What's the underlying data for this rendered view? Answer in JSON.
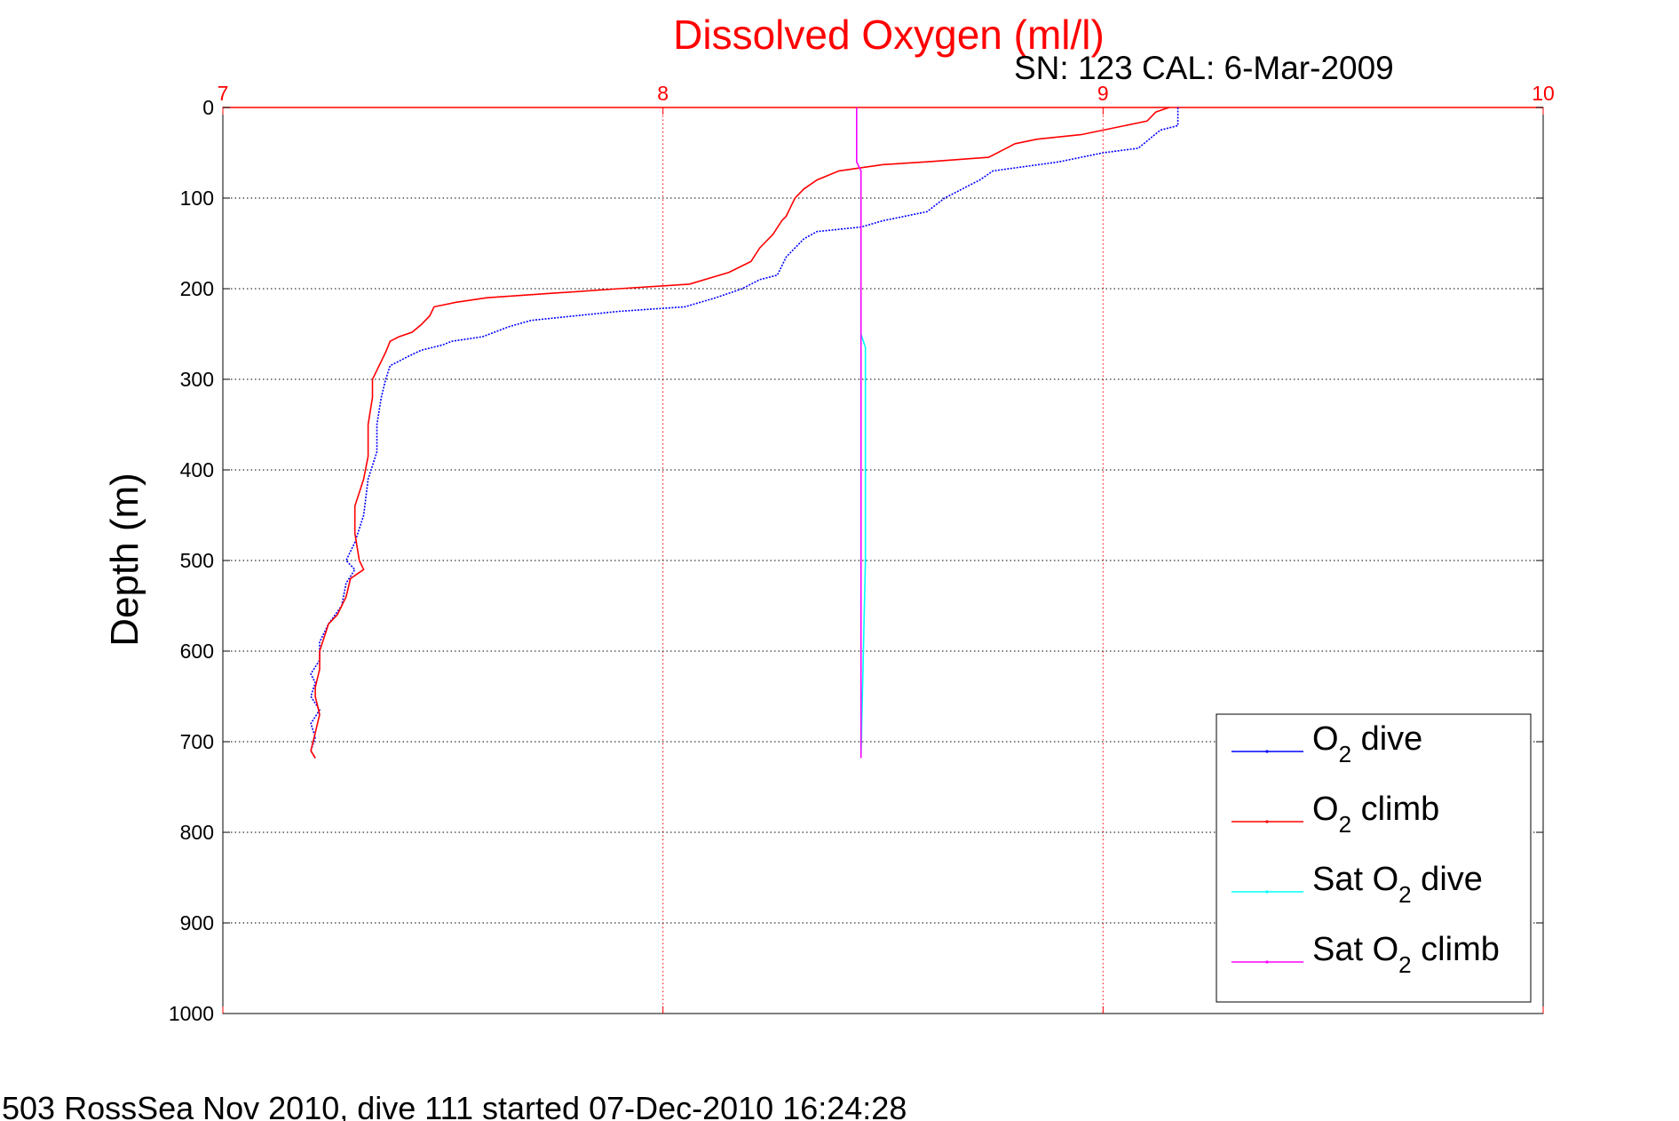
{
  "chart_data": {
    "type": "line",
    "title": "Dissolved Oxygen (ml/l)",
    "subtitle": "SN: 123  CAL: 6-Mar-2009",
    "xlabel": "",
    "ylabel": "Depth (m)",
    "xlim": [
      7,
      10
    ],
    "ylim": [
      0,
      1000
    ],
    "y_reversed": true,
    "x_axis_position": "top",
    "xticks": [
      "7",
      "8",
      "9",
      "10"
    ],
    "yticks": [
      "0",
      "100",
      "200",
      "300",
      "400",
      "500",
      "600",
      "700",
      "800",
      "900",
      "1000"
    ],
    "grid": true,
    "legend_position": "bottom-right",
    "series": [
      {
        "name": "O2 dive",
        "legend_prefix": "O",
        "legend_sub": "2",
        "legend_suffix": " dive",
        "color": "#0000ff",
        "points": [
          [
            9.17,
            0
          ],
          [
            9.17,
            20
          ],
          [
            9.13,
            25
          ],
          [
            9.08,
            45
          ],
          [
            9.0,
            50
          ],
          [
            8.9,
            60
          ],
          [
            8.75,
            70
          ],
          [
            8.72,
            80
          ],
          [
            8.68,
            90
          ],
          [
            8.64,
            100
          ],
          [
            8.6,
            115
          ],
          [
            8.5,
            125
          ],
          [
            8.45,
            132
          ],
          [
            8.35,
            137
          ],
          [
            8.32,
            145
          ],
          [
            8.3,
            155
          ],
          [
            8.28,
            165
          ],
          [
            8.27,
            175
          ],
          [
            8.26,
            185
          ],
          [
            8.22,
            190
          ],
          [
            8.18,
            200
          ],
          [
            8.12,
            210
          ],
          [
            8.05,
            220
          ],
          [
            7.9,
            225
          ],
          [
            7.8,
            230
          ],
          [
            7.7,
            235
          ],
          [
            7.65,
            242
          ],
          [
            7.59,
            253
          ],
          [
            7.52,
            258
          ],
          [
            7.5,
            262
          ],
          [
            7.45,
            268
          ],
          [
            7.42,
            275
          ],
          [
            7.38,
            285
          ],
          [
            7.37,
            300
          ],
          [
            7.36,
            320
          ],
          [
            7.35,
            350
          ],
          [
            7.35,
            380
          ],
          [
            7.33,
            410
          ],
          [
            7.32,
            450
          ],
          [
            7.3,
            480
          ],
          [
            7.28,
            500
          ],
          [
            7.3,
            510
          ],
          [
            7.28,
            525
          ],
          [
            7.27,
            550
          ],
          [
            7.24,
            570
          ],
          [
            7.22,
            590
          ],
          [
            7.22,
            610
          ],
          [
            7.2,
            625
          ],
          [
            7.21,
            635
          ],
          [
            7.2,
            650
          ],
          [
            7.22,
            665
          ],
          [
            7.2,
            680
          ],
          [
            7.21,
            695
          ],
          [
            7.2,
            710
          ],
          [
            7.21,
            718
          ]
        ]
      },
      {
        "name": "O2 climb",
        "legend_prefix": "O",
        "legend_sub": "2",
        "legend_suffix": " climb",
        "color": "#ff0000",
        "points": [
          [
            9.15,
            0
          ],
          [
            9.12,
            5
          ],
          [
            9.1,
            15
          ],
          [
            9.05,
            20
          ],
          [
            8.95,
            30
          ],
          [
            8.85,
            35
          ],
          [
            8.8,
            40
          ],
          [
            8.78,
            45
          ],
          [
            8.74,
            55
          ],
          [
            8.6,
            60
          ],
          [
            8.5,
            63
          ],
          [
            8.4,
            70
          ],
          [
            8.35,
            80
          ],
          [
            8.32,
            90
          ],
          [
            8.3,
            100
          ],
          [
            8.29,
            110
          ],
          [
            8.28,
            120
          ],
          [
            8.27,
            125
          ],
          [
            8.25,
            140
          ],
          [
            8.22,
            155
          ],
          [
            8.2,
            170
          ],
          [
            8.15,
            182
          ],
          [
            8.06,
            195
          ],
          [
            7.9,
            200
          ],
          [
            7.75,
            205
          ],
          [
            7.6,
            210
          ],
          [
            7.53,
            215
          ],
          [
            7.48,
            220
          ],
          [
            7.47,
            230
          ],
          [
            7.45,
            240
          ],
          [
            7.43,
            248
          ],
          [
            7.4,
            253
          ],
          [
            7.38,
            258
          ],
          [
            7.37,
            270
          ],
          [
            7.35,
            290
          ],
          [
            7.34,
            300
          ],
          [
            7.34,
            320
          ],
          [
            7.33,
            350
          ],
          [
            7.33,
            370
          ],
          [
            7.33,
            385
          ],
          [
            7.32,
            410
          ],
          [
            7.3,
            440
          ],
          [
            7.3,
            470
          ],
          [
            7.31,
            500
          ],
          [
            7.32,
            510
          ],
          [
            7.29,
            520
          ],
          [
            7.28,
            540
          ],
          [
            7.26,
            560
          ],
          [
            7.24,
            570
          ],
          [
            7.23,
            585
          ],
          [
            7.22,
            600
          ],
          [
            7.22,
            620
          ],
          [
            7.21,
            640
          ],
          [
            7.21,
            650
          ],
          [
            7.22,
            670
          ],
          [
            7.21,
            690
          ],
          [
            7.2,
            710
          ],
          [
            7.21,
            718
          ]
        ]
      },
      {
        "name": "Sat O2 dive",
        "legend_prefix": "Sat O",
        "legend_sub": "2",
        "legend_suffix": " dive",
        "color": "#00ffff",
        "points": [
          [
            8.44,
            0
          ],
          [
            8.44,
            60
          ],
          [
            8.45,
            70
          ],
          [
            8.45,
            100
          ],
          [
            8.45,
            200
          ],
          [
            8.45,
            250
          ],
          [
            8.46,
            265
          ],
          [
            8.46,
            300
          ],
          [
            8.46,
            500
          ],
          [
            8.45,
            718
          ]
        ]
      },
      {
        "name": "Sat O2 climb",
        "legend_prefix": "Sat O",
        "legend_sub": "2",
        "legend_suffix": " climb",
        "color": "#ff00ff",
        "points": [
          [
            8.44,
            0
          ],
          [
            8.44,
            60
          ],
          [
            8.45,
            70
          ],
          [
            8.45,
            100
          ],
          [
            8.45,
            200
          ],
          [
            8.45,
            300
          ],
          [
            8.45,
            500
          ],
          [
            8.45,
            718
          ]
        ]
      }
    ]
  },
  "footer": "503 RossSea Nov 2010, dive 111 started 07-Dec-2010 16:24:28"
}
